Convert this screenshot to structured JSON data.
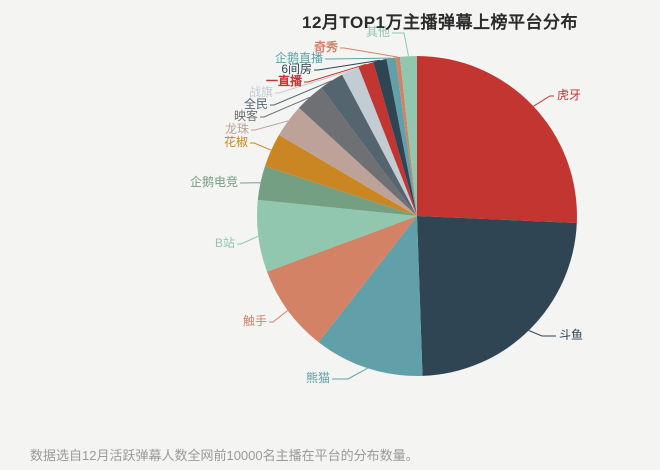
{
  "chart_data": {
    "type": "pie",
    "title": "12月TOP1万主播弹幕上榜平台分布",
    "caption": "数据选自12月活跃弹幕人数全网前10000名主播在平台的分布数量。",
    "total": 10000,
    "start_angle": "top",
    "direction": "clockwise",
    "legend_position": "none",
    "label_style": "outside-leader-lines-colored-as-slice",
    "background_color": "#f4f4f2",
    "series": [
      {
        "name": "虎牙",
        "value": 2570,
        "color": "#c23531"
      },
      {
        "name": "斗鱼",
        "value": 2375,
        "color": "#2f4554"
      },
      {
        "name": "熊猫",
        "value": 1110,
        "color": "#61a0a8"
      },
      {
        "name": "触手",
        "value": 880,
        "color": "#d48265"
      },
      {
        "name": "B站",
        "value": 725,
        "color": "#91c7ae"
      },
      {
        "name": "企鹅电竞",
        "value": 345,
        "color": "#749f83"
      },
      {
        "name": "花椒",
        "value": 340,
        "color": "#ca8622"
      },
      {
        "name": "龙珠",
        "value": 335,
        "color": "#bda29a"
      },
      {
        "name": "映客",
        "value": 300,
        "color": "#6e7074"
      },
      {
        "name": "全民",
        "value": 245,
        "color": "#546570"
      },
      {
        "name": "战旗",
        "value": 180,
        "color": "#c4ccd3"
      },
      {
        "name": "一直播",
        "value": 155,
        "color": "#c23531"
      },
      {
        "name": "6间房",
        "value": 135,
        "color": "#2f4554"
      },
      {
        "name": "企鹅直播",
        "value": 90,
        "color": "#61a0a8"
      },
      {
        "name": "奇秀",
        "value": 45,
        "color": "#d48265"
      },
      {
        "name": "其他",
        "value": 170,
        "color": "#91c7ae"
      }
    ]
  }
}
